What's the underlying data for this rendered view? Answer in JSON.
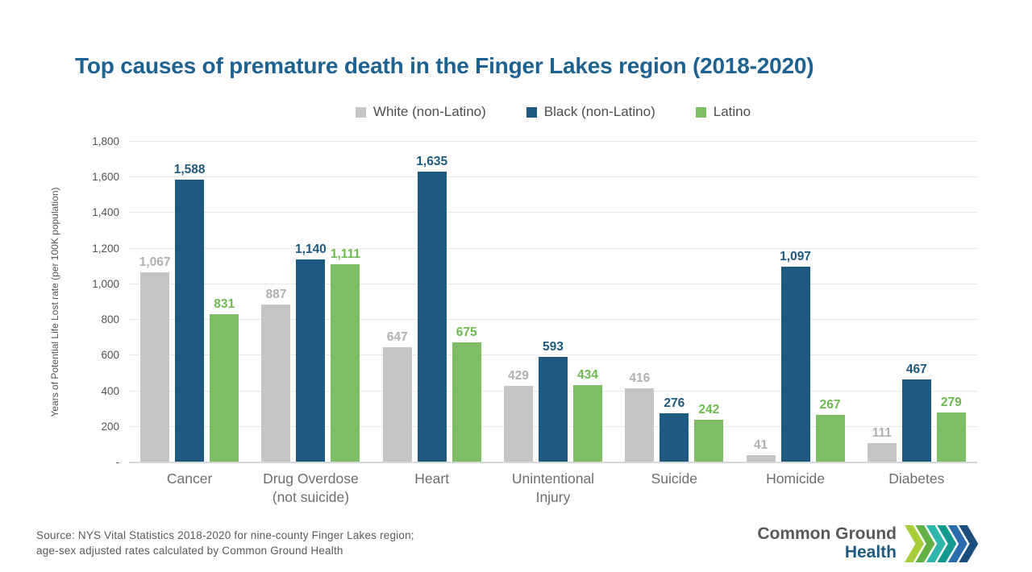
{
  "slide": {
    "title": "Top causes of premature death in the Finger Lakes region (2018-2020)",
    "source_line1": "Source: NYS Vital Statistics 2018-2020 for nine-county Finger Lakes region;",
    "source_line2": "age-sex adjusted rates calculated by Common Ground Health",
    "logo": {
      "line1": "Common Ground",
      "line2": "Health"
    }
  },
  "colors": {
    "title": "#1d6290",
    "white_bar": "#c4c5c7",
    "white_label": "#aeb0b2",
    "black_bar": "#1e5a80",
    "black_label": "#1e5a80",
    "latino_bar": "#7dbd63",
    "latino_label": "#6eb94f",
    "gridline": "#e9eaea",
    "axis_text": "#515254",
    "logo_chevrons": [
      "#a6ce39",
      "#64b145",
      "#2eb6ad",
      "#13998f",
      "#2a6cad",
      "#1b4e7d"
    ]
  },
  "chart_data": {
    "type": "bar",
    "title": "Top causes of premature death in the Finger Lakes region (2018-2020)",
    "xlabel": "",
    "ylabel": "Years of Potential Life Lost rate (per 100K population)",
    "ylim": [
      0,
      1800
    ],
    "ytick_step": 200,
    "ytick_labels": [
      "-",
      "200",
      "400",
      "600",
      "800",
      "1,000",
      "1,200",
      "1,400",
      "1,600",
      "1,800"
    ],
    "grid": true,
    "legend_position": "top",
    "categories": [
      "Cancer",
      "Drug Overdose\n(not suicide)",
      "Heart",
      "Unintentional\nInjury",
      "Suicide",
      "Homicide",
      "Diabetes"
    ],
    "series": [
      {
        "name": "White (non-Latino)",
        "color": "#c4c5c7",
        "label_color": "#aeb0b2",
        "values": [
          1067,
          887,
          647,
          429,
          416,
          41,
          111
        ],
        "labels": [
          "1,067",
          "887",
          "647",
          "429",
          "416",
          "41",
          "111"
        ]
      },
      {
        "name": "Black (non-Latino)",
        "color": "#1e5a80",
        "label_color": "#1e5a80",
        "values": [
          1588,
          1140,
          1635,
          593,
          276,
          1097,
          467
        ],
        "labels": [
          "1,588",
          "1,140",
          "1,635",
          "593",
          "276",
          "1,097",
          "467"
        ]
      },
      {
        "name": "Latino",
        "color": "#7dbd63",
        "label_color": "#6eb94f",
        "values": [
          831,
          1111,
          675,
          434,
          242,
          267,
          279
        ],
        "labels": [
          "831",
          "1,111",
          "675",
          "434",
          "242",
          "267",
          "279"
        ]
      }
    ]
  }
}
